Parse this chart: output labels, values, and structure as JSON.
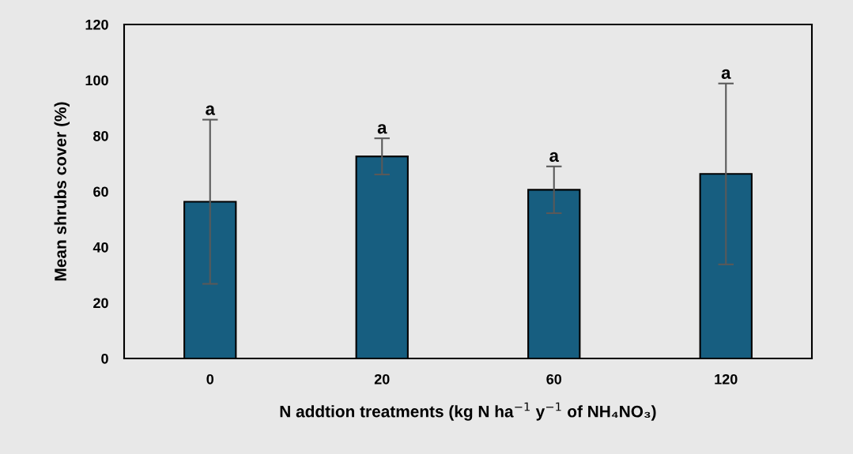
{
  "chart_data": {
    "type": "bar",
    "xlabel": "N addtion treatments (kg N ha$^{−1}$ y$^{−1}$ of NH₄NO₃)",
    "ylabel": "Mean shrubs cover (%)",
    "categories": [
      "0",
      "20",
      "60",
      "120"
    ],
    "values": [
      56.3,
      72.6,
      60.6,
      66.3
    ],
    "errors": [
      29.5,
      6.5,
      8.4,
      32.5
    ],
    "color": "#175e80",
    "ylim": [
      0,
      120
    ],
    "yticks": [
      0,
      20,
      40,
      60,
      80,
      100,
      120
    ],
    "grid": false,
    "annotations": [
      {
        "text": "a",
        "x": "0",
        "y": 85.8
      },
      {
        "text": "a",
        "x": "20",
        "y": 79.1
      },
      {
        "text": "a",
        "x": "60",
        "y": 69.0
      },
      {
        "text": "a",
        "x": "120",
        "y": 98.8
      }
    ]
  }
}
